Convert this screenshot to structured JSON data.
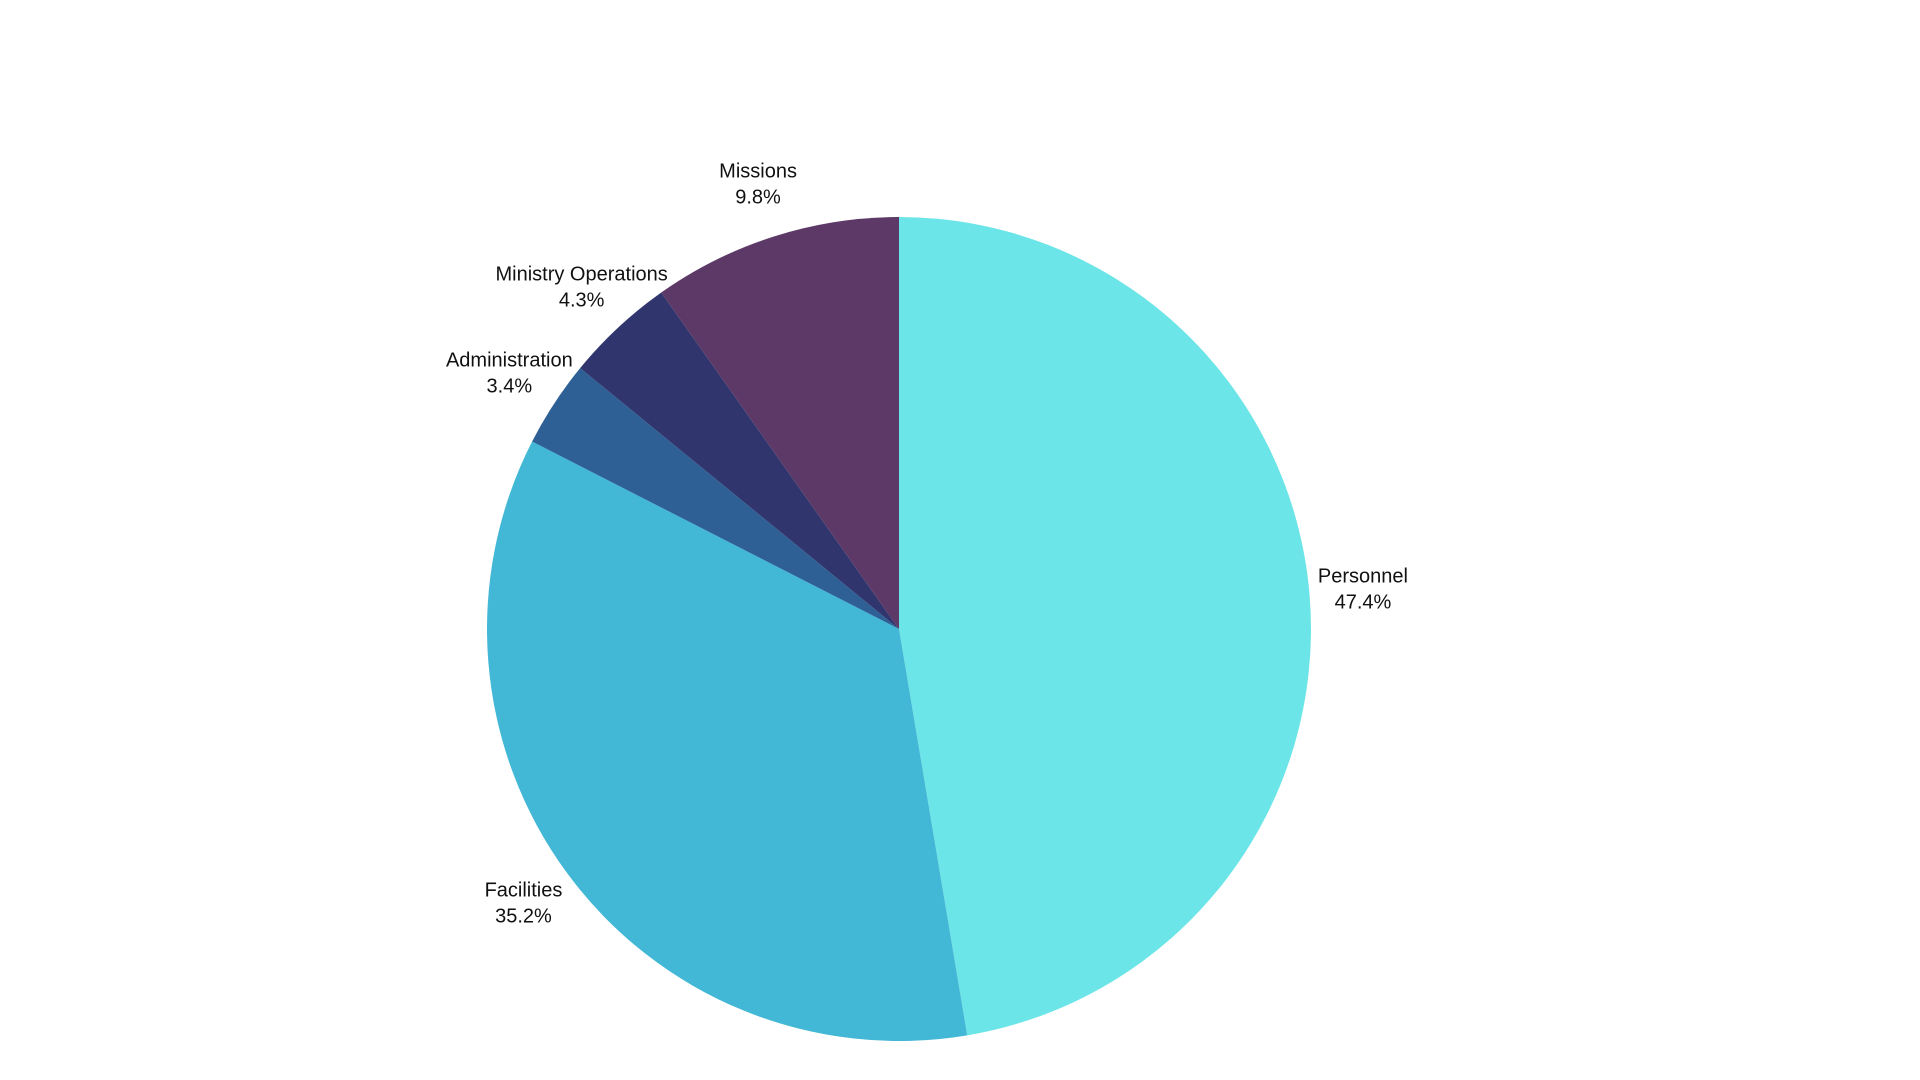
{
  "chart_data": {
    "type": "pie",
    "categories": [
      "Personnel",
      "Facilities",
      "Administration",
      "Ministry Operations",
      "Missions"
    ],
    "values": [
      47.4,
      35.2,
      3.4,
      4.3,
      9.8
    ],
    "value_labels": [
      "47.4%",
      "35.2%",
      "3.4%",
      "4.3%",
      "9.8%"
    ],
    "colors": [
      "#6ce5e8",
      "#42b7d6",
      "#2e6096",
      "#31356e",
      "#5c3966"
    ]
  }
}
